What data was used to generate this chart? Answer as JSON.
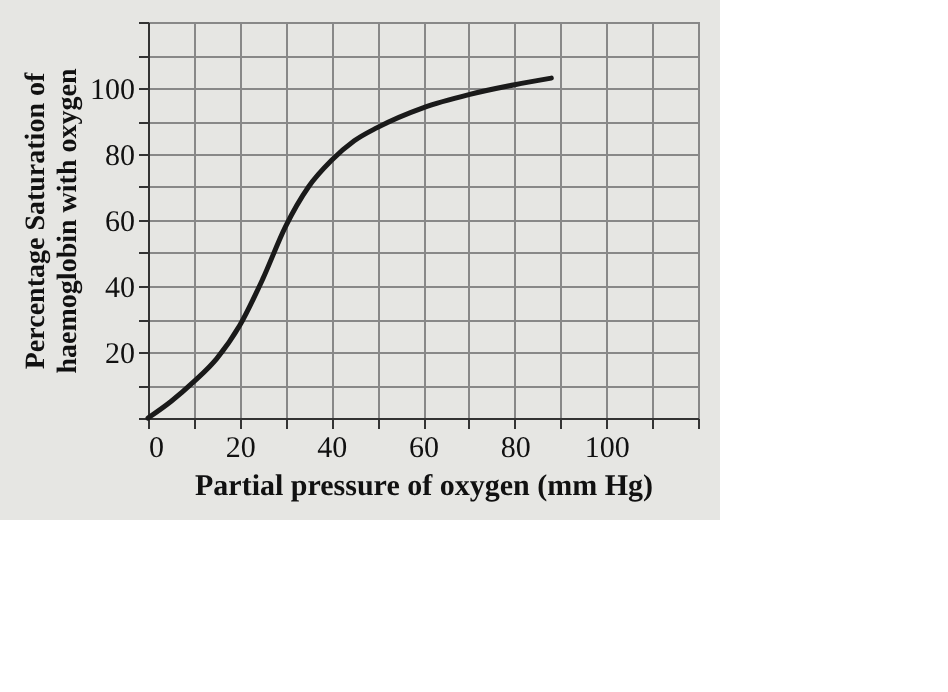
{
  "chart_data": {
    "type": "line",
    "xlabel": "Partial pressure of oxygen (mm Hg)",
    "ylabel": "Percentage Saturation of haemoglobin with oxygen",
    "x": [
      0,
      5,
      10,
      15,
      20,
      25,
      30,
      35,
      40,
      45,
      50,
      60,
      70,
      80,
      88
    ],
    "series": [
      {
        "color": "#1a1a1a",
        "values": [
          0,
          5,
          11,
          18,
          28,
          42,
          58,
          70,
          78,
          84,
          88,
          94,
          98,
          101,
          103
        ]
      }
    ],
    "xlim": [
      0,
      120
    ],
    "ylim": [
      0,
      120
    ],
    "xticks": [
      0,
      {
        "value": 10,
        "label": null
      },
      20,
      {
        "value": 30,
        "label": null
      },
      40,
      {
        "value": 50,
        "label": null
      },
      60,
      {
        "value": 70,
        "label": null
      },
      80,
      {
        "value": 90,
        "label": null
      },
      100,
      {
        "value": 110,
        "label": null
      },
      {
        "value": 120,
        "label": null
      }
    ],
    "yticks": [
      {
        "value": 0,
        "label": null
      },
      {
        "value": 10,
        "label": null
      },
      20,
      {
        "value": 30,
        "label": null
      },
      40,
      {
        "value": 50,
        "label": null
      },
      60,
      {
        "value": 70,
        "label": null
      },
      80,
      {
        "value": 90,
        "label": null
      },
      100,
      {
        "value": 110,
        "label": null
      },
      {
        "value": 120,
        "label": null
      }
    ],
    "grid": true,
    "marker": "none",
    "line_style": "solid"
  }
}
